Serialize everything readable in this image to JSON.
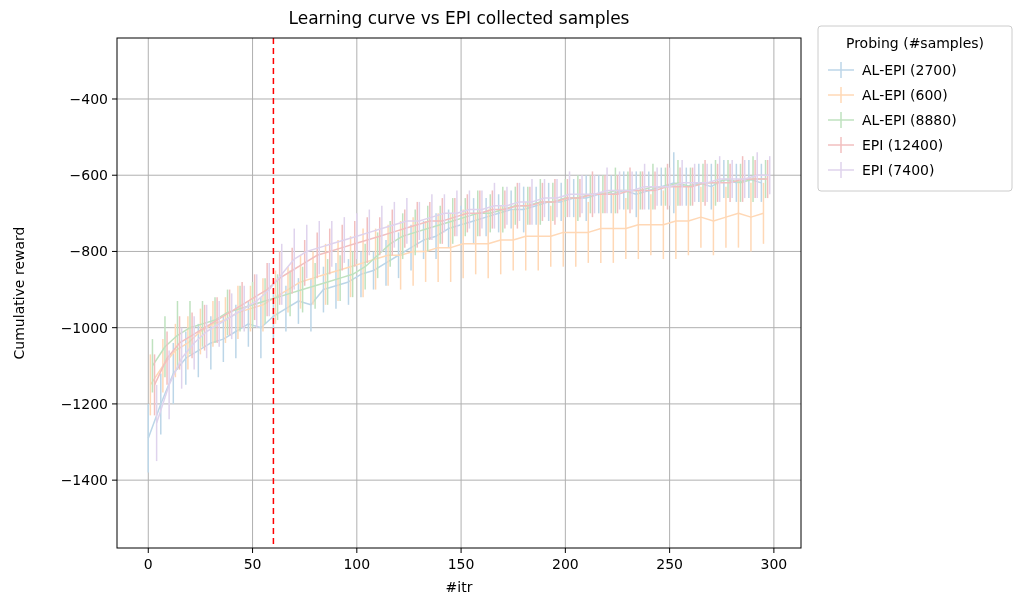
{
  "chart_data": {
    "type": "line",
    "title": "Learning curve vs EPI collected samples",
    "xlabel": "#itr",
    "ylabel": "Cumulative reward",
    "legend_title": "Probing (#samples)",
    "series": [
      {
        "name": "AL-EPI (2700)",
        "color": "#bcd6e8",
        "x": [
          0,
          6,
          12,
          18,
          24,
          30,
          36,
          42,
          48,
          54,
          60,
          66,
          72,
          78,
          84,
          90,
          96,
          102,
          108,
          114,
          120,
          126,
          132,
          138,
          144,
          150,
          156,
          162,
          168,
          174,
          180,
          186,
          192,
          198,
          204,
          210,
          216,
          222,
          228,
          234,
          240,
          246,
          252,
          258,
          264,
          270,
          276,
          282,
          288,
          294
        ],
        "values": [
          -1290,
          -1200,
          -1120,
          -1080,
          -1060,
          -1040,
          -1030,
          -1010,
          -990,
          -1000,
          -970,
          -950,
          -930,
          -940,
          -900,
          -890,
          -880,
          -860,
          -850,
          -830,
          -810,
          -790,
          -770,
          -760,
          -740,
          -730,
          -720,
          -710,
          -700,
          -690,
          -690,
          -680,
          -670,
          -670,
          -660,
          -660,
          -650,
          -650,
          -640,
          -650,
          -640,
          -630,
          -620,
          -630,
          -620,
          -630,
          -610,
          -620,
          -610,
          -620
        ],
        "errors": [
          90,
          80,
          80,
          70,
          70,
          70,
          60,
          70,
          60,
          80,
          70,
          60,
          60,
          70,
          60,
          60,
          60,
          60,
          50,
          60,
          60,
          60,
          50,
          60,
          50,
          50,
          60,
          50,
          50,
          50,
          60,
          50,
          50,
          50,
          50,
          60,
          50,
          50,
          50,
          60,
          50,
          50,
          80,
          50,
          50,
          60,
          50,
          50,
          50,
          50
        ]
      },
      {
        "name": "AL-EPI (600)",
        "color": "#ffd8b6",
        "x": [
          1,
          7,
          13,
          19,
          25,
          31,
          37,
          43,
          49,
          55,
          61,
          67,
          73,
          79,
          85,
          91,
          97,
          103,
          109,
          115,
          121,
          127,
          133,
          139,
          145,
          151,
          157,
          163,
          169,
          175,
          181,
          187,
          193,
          199,
          205,
          211,
          217,
          223,
          229,
          235,
          241,
          247,
          253,
          259,
          265,
          271,
          277,
          283,
          289,
          295
        ],
        "values": [
          -1150,
          -1100,
          -1060,
          -1040,
          -1010,
          -990,
          -980,
          -960,
          -950,
          -940,
          -920,
          -900,
          -880,
          -870,
          -860,
          -850,
          -840,
          -830,
          -820,
          -810,
          -810,
          -800,
          -800,
          -790,
          -790,
          -780,
          -780,
          -780,
          -770,
          -770,
          -760,
          -760,
          -760,
          -750,
          -750,
          -750,
          -740,
          -740,
          -740,
          -730,
          -730,
          -730,
          -720,
          -720,
          -710,
          -720,
          -710,
          -700,
          -710,
          -700
        ],
        "errors": [
          80,
          70,
          70,
          70,
          60,
          60,
          60,
          70,
          60,
          70,
          70,
          60,
          70,
          70,
          80,
          80,
          80,
          90,
          80,
          80,
          90,
          90,
          80,
          90,
          90,
          90,
          80,
          90,
          90,
          80,
          90,
          90,
          80,
          90,
          90,
          80,
          90,
          90,
          80,
          90,
          80,
          90,
          100,
          90,
          80,
          90,
          80,
          90,
          90,
          80
        ]
      },
      {
        "name": "AL-EPI (8880)",
        "color": "#bfe2bf",
        "x": [
          2,
          8,
          14,
          20,
          26,
          32,
          38,
          44,
          50,
          56,
          62,
          68,
          74,
          80,
          86,
          92,
          98,
          104,
          110,
          116,
          122,
          128,
          134,
          140,
          146,
          152,
          158,
          164,
          170,
          176,
          182,
          188,
          194,
          200,
          206,
          212,
          218,
          224,
          230,
          236,
          242,
          248,
          254,
          260,
          266,
          272,
          278,
          284,
          290,
          296
        ],
        "values": [
          -1100,
          -1050,
          -1020,
          -1000,
          -990,
          -980,
          -960,
          -950,
          -940,
          -930,
          -920,
          -910,
          -900,
          -890,
          -880,
          -870,
          -860,
          -840,
          -810,
          -780,
          -760,
          -750,
          -740,
          -730,
          -720,
          -710,
          -700,
          -700,
          -690,
          -680,
          -680,
          -670,
          -670,
          -660,
          -660,
          -650,
          -650,
          -640,
          -640,
          -640,
          -630,
          -630,
          -620,
          -630,
          -620,
          -620,
          -610,
          -620,
          -610,
          -610
        ],
        "errors": [
          70,
          80,
          90,
          70,
          60,
          60,
          60,
          60,
          60,
          60,
          60,
          60,
          60,
          60,
          60,
          60,
          60,
          60,
          60,
          60,
          60,
          60,
          60,
          50,
          60,
          50,
          60,
          50,
          60,
          50,
          50,
          60,
          50,
          50,
          60,
          50,
          50,
          60,
          50,
          50,
          60,
          50,
          60,
          50,
          50,
          60,
          50,
          50,
          60,
          50
        ]
      },
      {
        "name": "EPI (12400)",
        "color": "#f2bfbf",
        "x": [
          3,
          9,
          15,
          21,
          27,
          33,
          39,
          45,
          51,
          57,
          63,
          69,
          75,
          81,
          87,
          93,
          99,
          105,
          111,
          117,
          123,
          129,
          135,
          141,
          147,
          153,
          159,
          165,
          171,
          177,
          183,
          189,
          195,
          201,
          207,
          213,
          219,
          225,
          231,
          237,
          243,
          249,
          255,
          261,
          267,
          273,
          279,
          285,
          291,
          297
        ],
        "values": [
          -1150,
          -1080,
          -1040,
          -1020,
          -1000,
          -980,
          -960,
          -940,
          -920,
          -900,
          -870,
          -850,
          -830,
          -810,
          -800,
          -790,
          -780,
          -770,
          -760,
          -750,
          -740,
          -730,
          -720,
          -720,
          -710,
          -700,
          -700,
          -690,
          -690,
          -680,
          -680,
          -670,
          -670,
          -660,
          -660,
          -650,
          -650,
          -650,
          -640,
          -640,
          -640,
          -630,
          -630,
          -630,
          -620,
          -620,
          -620,
          -610,
          -610,
          -610
        ],
        "errors": [
          80,
          70,
          70,
          60,
          60,
          60,
          60,
          60,
          60,
          70,
          70,
          60,
          60,
          60,
          60,
          60,
          60,
          60,
          50,
          60,
          50,
          60,
          50,
          60,
          50,
          50,
          60,
          50,
          50,
          60,
          50,
          50,
          60,
          50,
          50,
          60,
          50,
          50,
          60,
          50,
          50,
          60,
          50,
          50,
          60,
          50,
          50,
          60,
          50,
          50
        ]
      },
      {
        "name": "EPI (7400)",
        "color": "#dfd3ed",
        "x": [
          4,
          10,
          16,
          22,
          28,
          34,
          40,
          46,
          52,
          58,
          64,
          70,
          76,
          82,
          88,
          94,
          100,
          106,
          112,
          118,
          124,
          130,
          136,
          142,
          148,
          154,
          160,
          166,
          172,
          178,
          184,
          190,
          196,
          202,
          208,
          214,
          220,
          226,
          232,
          238,
          244,
          250,
          256,
          262,
          268,
          274,
          280,
          286,
          292,
          298
        ],
        "values": [
          -1250,
          -1150,
          -1080,
          -1040,
          -1010,
          -990,
          -970,
          -950,
          -930,
          -900,
          -860,
          -820,
          -800,
          -790,
          -780,
          -770,
          -760,
          -750,
          -740,
          -730,
          -720,
          -720,
          -710,
          -700,
          -700,
          -690,
          -690,
          -680,
          -680,
          -670,
          -670,
          -660,
          -660,
          -650,
          -650,
          -650,
          -640,
          -640,
          -640,
          -630,
          -630,
          -630,
          -620,
          -620,
          -620,
          -610,
          -610,
          -610,
          -600,
          -600
        ],
        "errors": [
          100,
          90,
          80,
          70,
          70,
          60,
          60,
          60,
          70,
          70,
          80,
          80,
          70,
          70,
          60,
          60,
          60,
          60,
          60,
          60,
          60,
          50,
          60,
          50,
          60,
          50,
          50,
          60,
          50,
          50,
          60,
          50,
          50,
          60,
          50,
          50,
          60,
          50,
          50,
          60,
          50,
          50,
          60,
          50,
          50,
          60,
          50,
          50,
          60,
          50
        ]
      }
    ],
    "xlim": [
      -15,
      313
    ],
    "ylim": [
      -1578,
      -240
    ],
    "xticks": [
      0,
      50,
      100,
      150,
      200,
      250,
      300
    ],
    "yticks": [
      {
        "value": -1400,
        "label": "−1400"
      },
      {
        "value": -1200,
        "label": "−1200"
      },
      {
        "value": -1000,
        "label": "−1000"
      },
      {
        "value": -800,
        "label": "−800"
      },
      {
        "value": -600,
        "label": "−600"
      },
      {
        "value": -400,
        "label": "−400"
      }
    ],
    "ref_lines": [
      {
        "axis": "x",
        "value": 60,
        "color": "#ff0000",
        "line_style": "dashed"
      }
    ],
    "grid": true,
    "legend": "top right",
    "marker": "none",
    "line_style": "solid"
  }
}
